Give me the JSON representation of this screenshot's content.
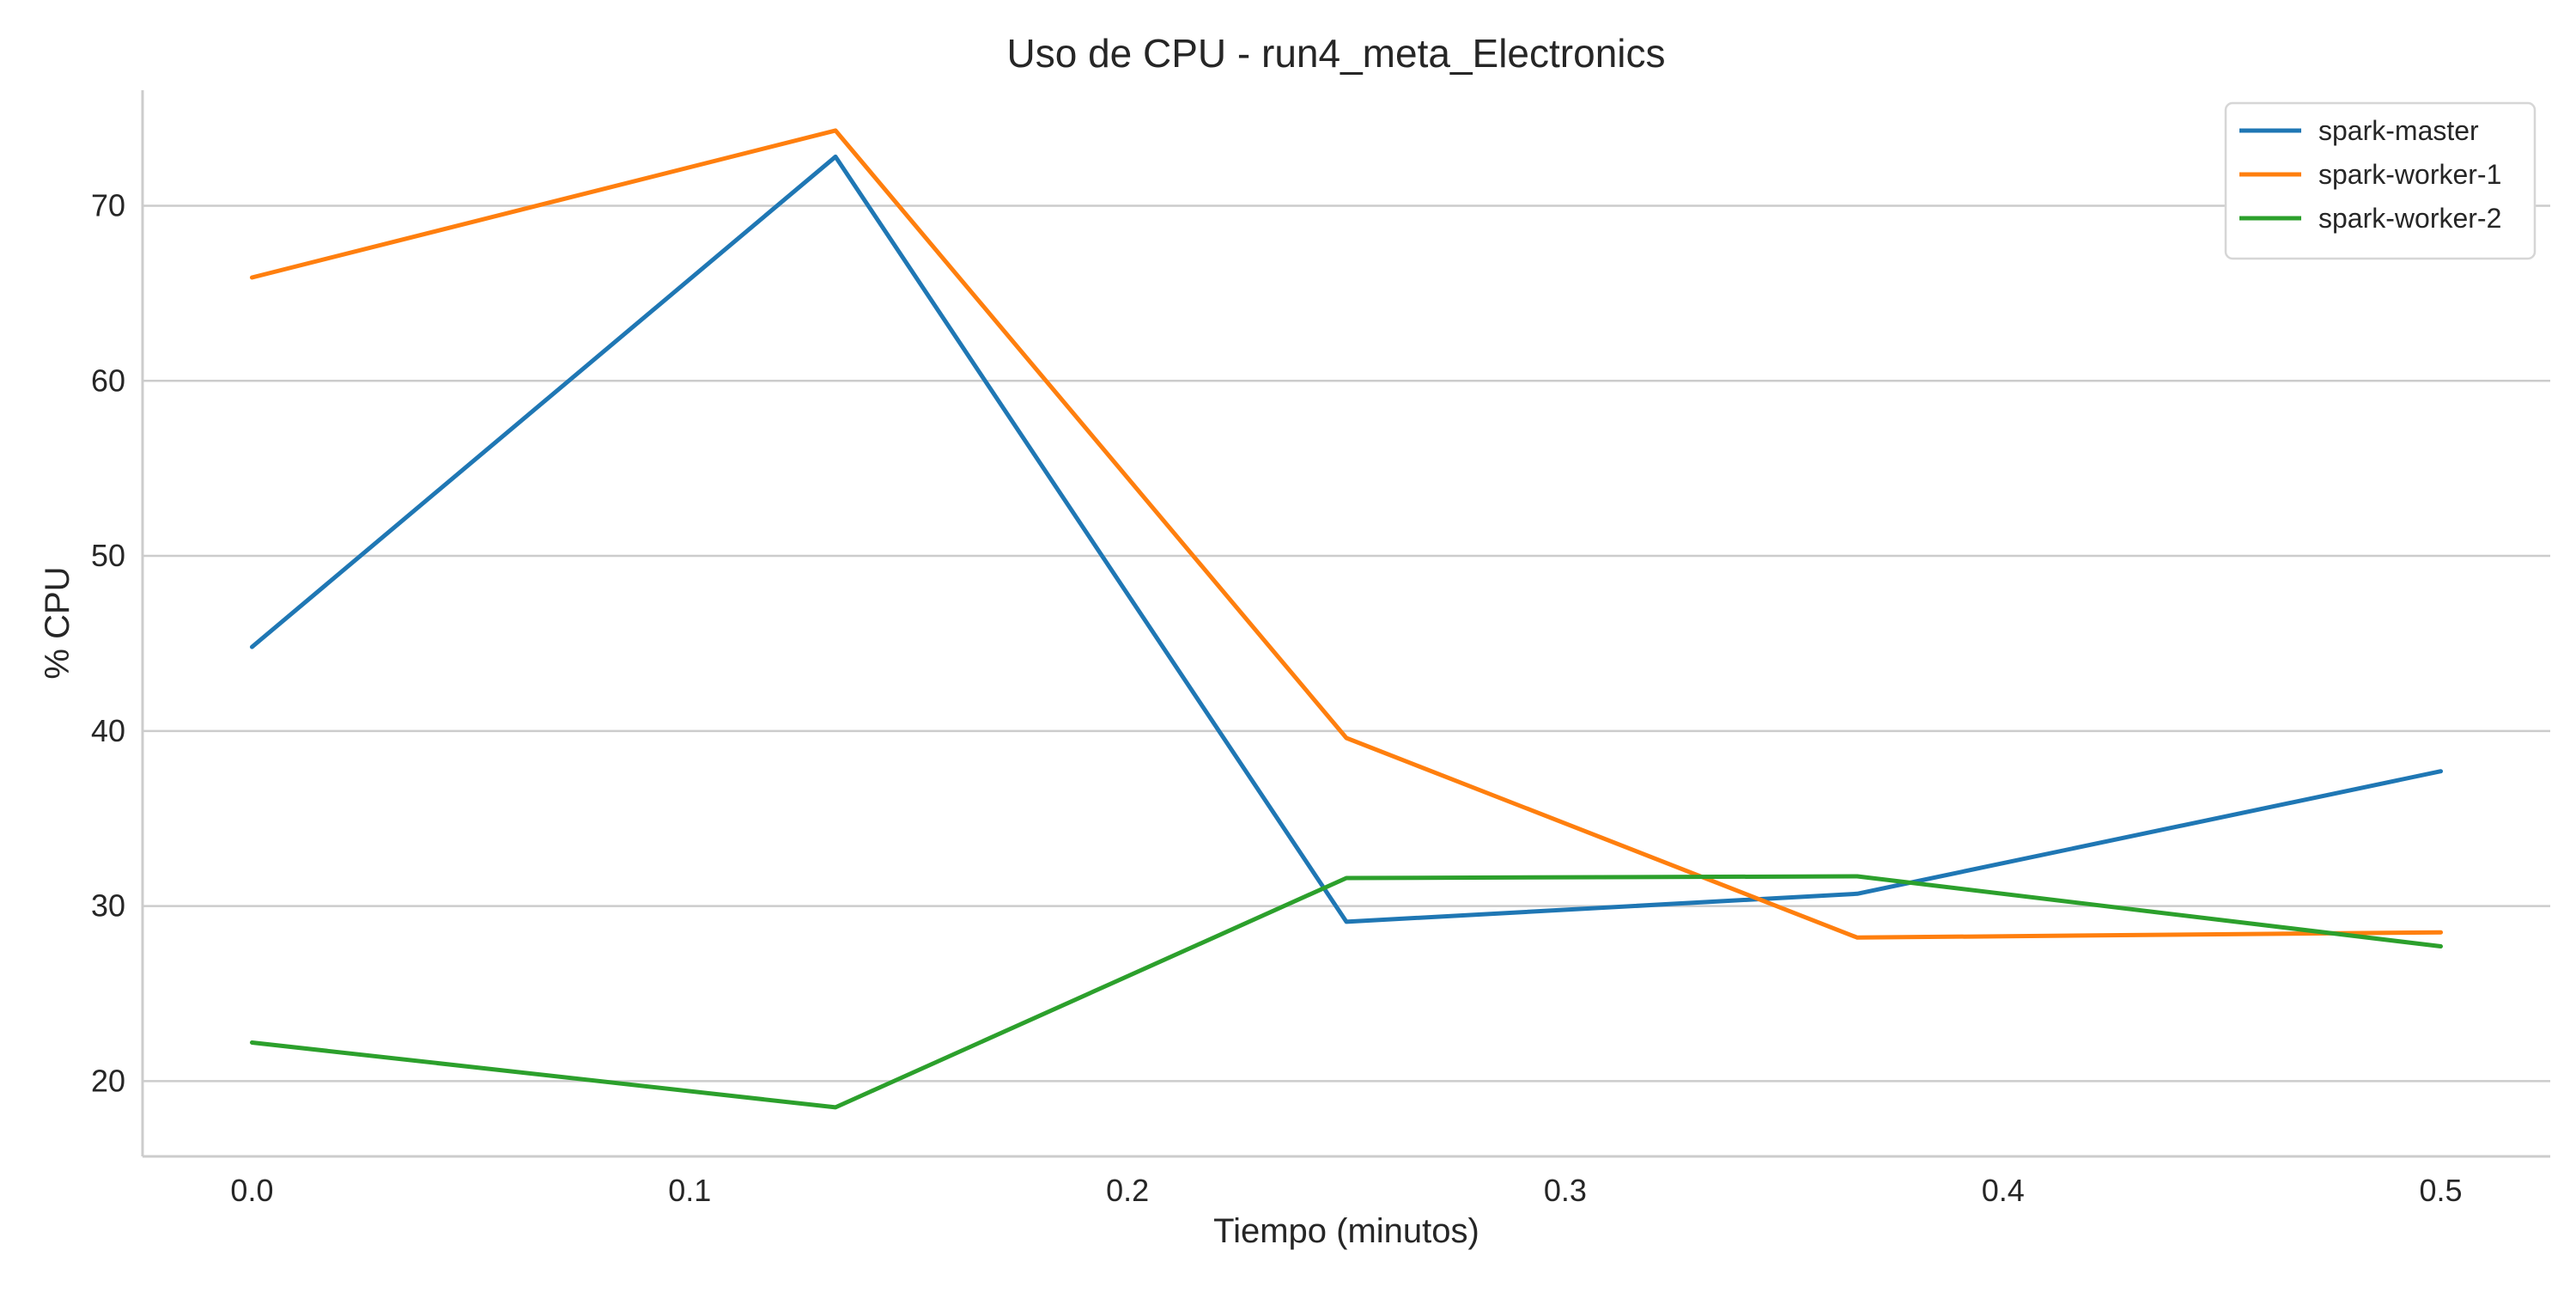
{
  "chart_data": {
    "type": "line",
    "title": "Uso de CPU - run4_meta_Electronics",
    "xlabel": "Tiempo (minutos)",
    "ylabel": "% CPU",
    "xlim": [
      -0.025,
      0.525
    ],
    "ylim": [
      15.7,
      76.6
    ],
    "xticks": [
      0.0,
      0.1,
      0.2,
      0.3,
      0.4,
      0.5
    ],
    "xtick_labels": [
      "0.0",
      "0.1",
      "0.2",
      "0.3",
      "0.4",
      "0.5"
    ],
    "yticks": [
      20,
      30,
      40,
      50,
      60,
      70
    ],
    "ytick_labels": [
      "20",
      "30",
      "40",
      "50",
      "60",
      "70"
    ],
    "grid": "horizontal",
    "legend_position": "top-right",
    "x": [
      0.0,
      0.1333,
      0.25,
      0.3667,
      0.5
    ],
    "series": [
      {
        "name": "spark-master",
        "color": "#1f77b4",
        "values": [
          44.8,
          72.8,
          29.1,
          30.7,
          37.7
        ]
      },
      {
        "name": "spark-worker-1",
        "color": "#ff7f0e",
        "values": [
          65.9,
          74.3,
          39.6,
          28.2,
          28.5
        ]
      },
      {
        "name": "spark-worker-2",
        "color": "#2ca02c",
        "values": [
          22.2,
          18.5,
          31.6,
          31.7,
          27.7
        ]
      }
    ]
  }
}
